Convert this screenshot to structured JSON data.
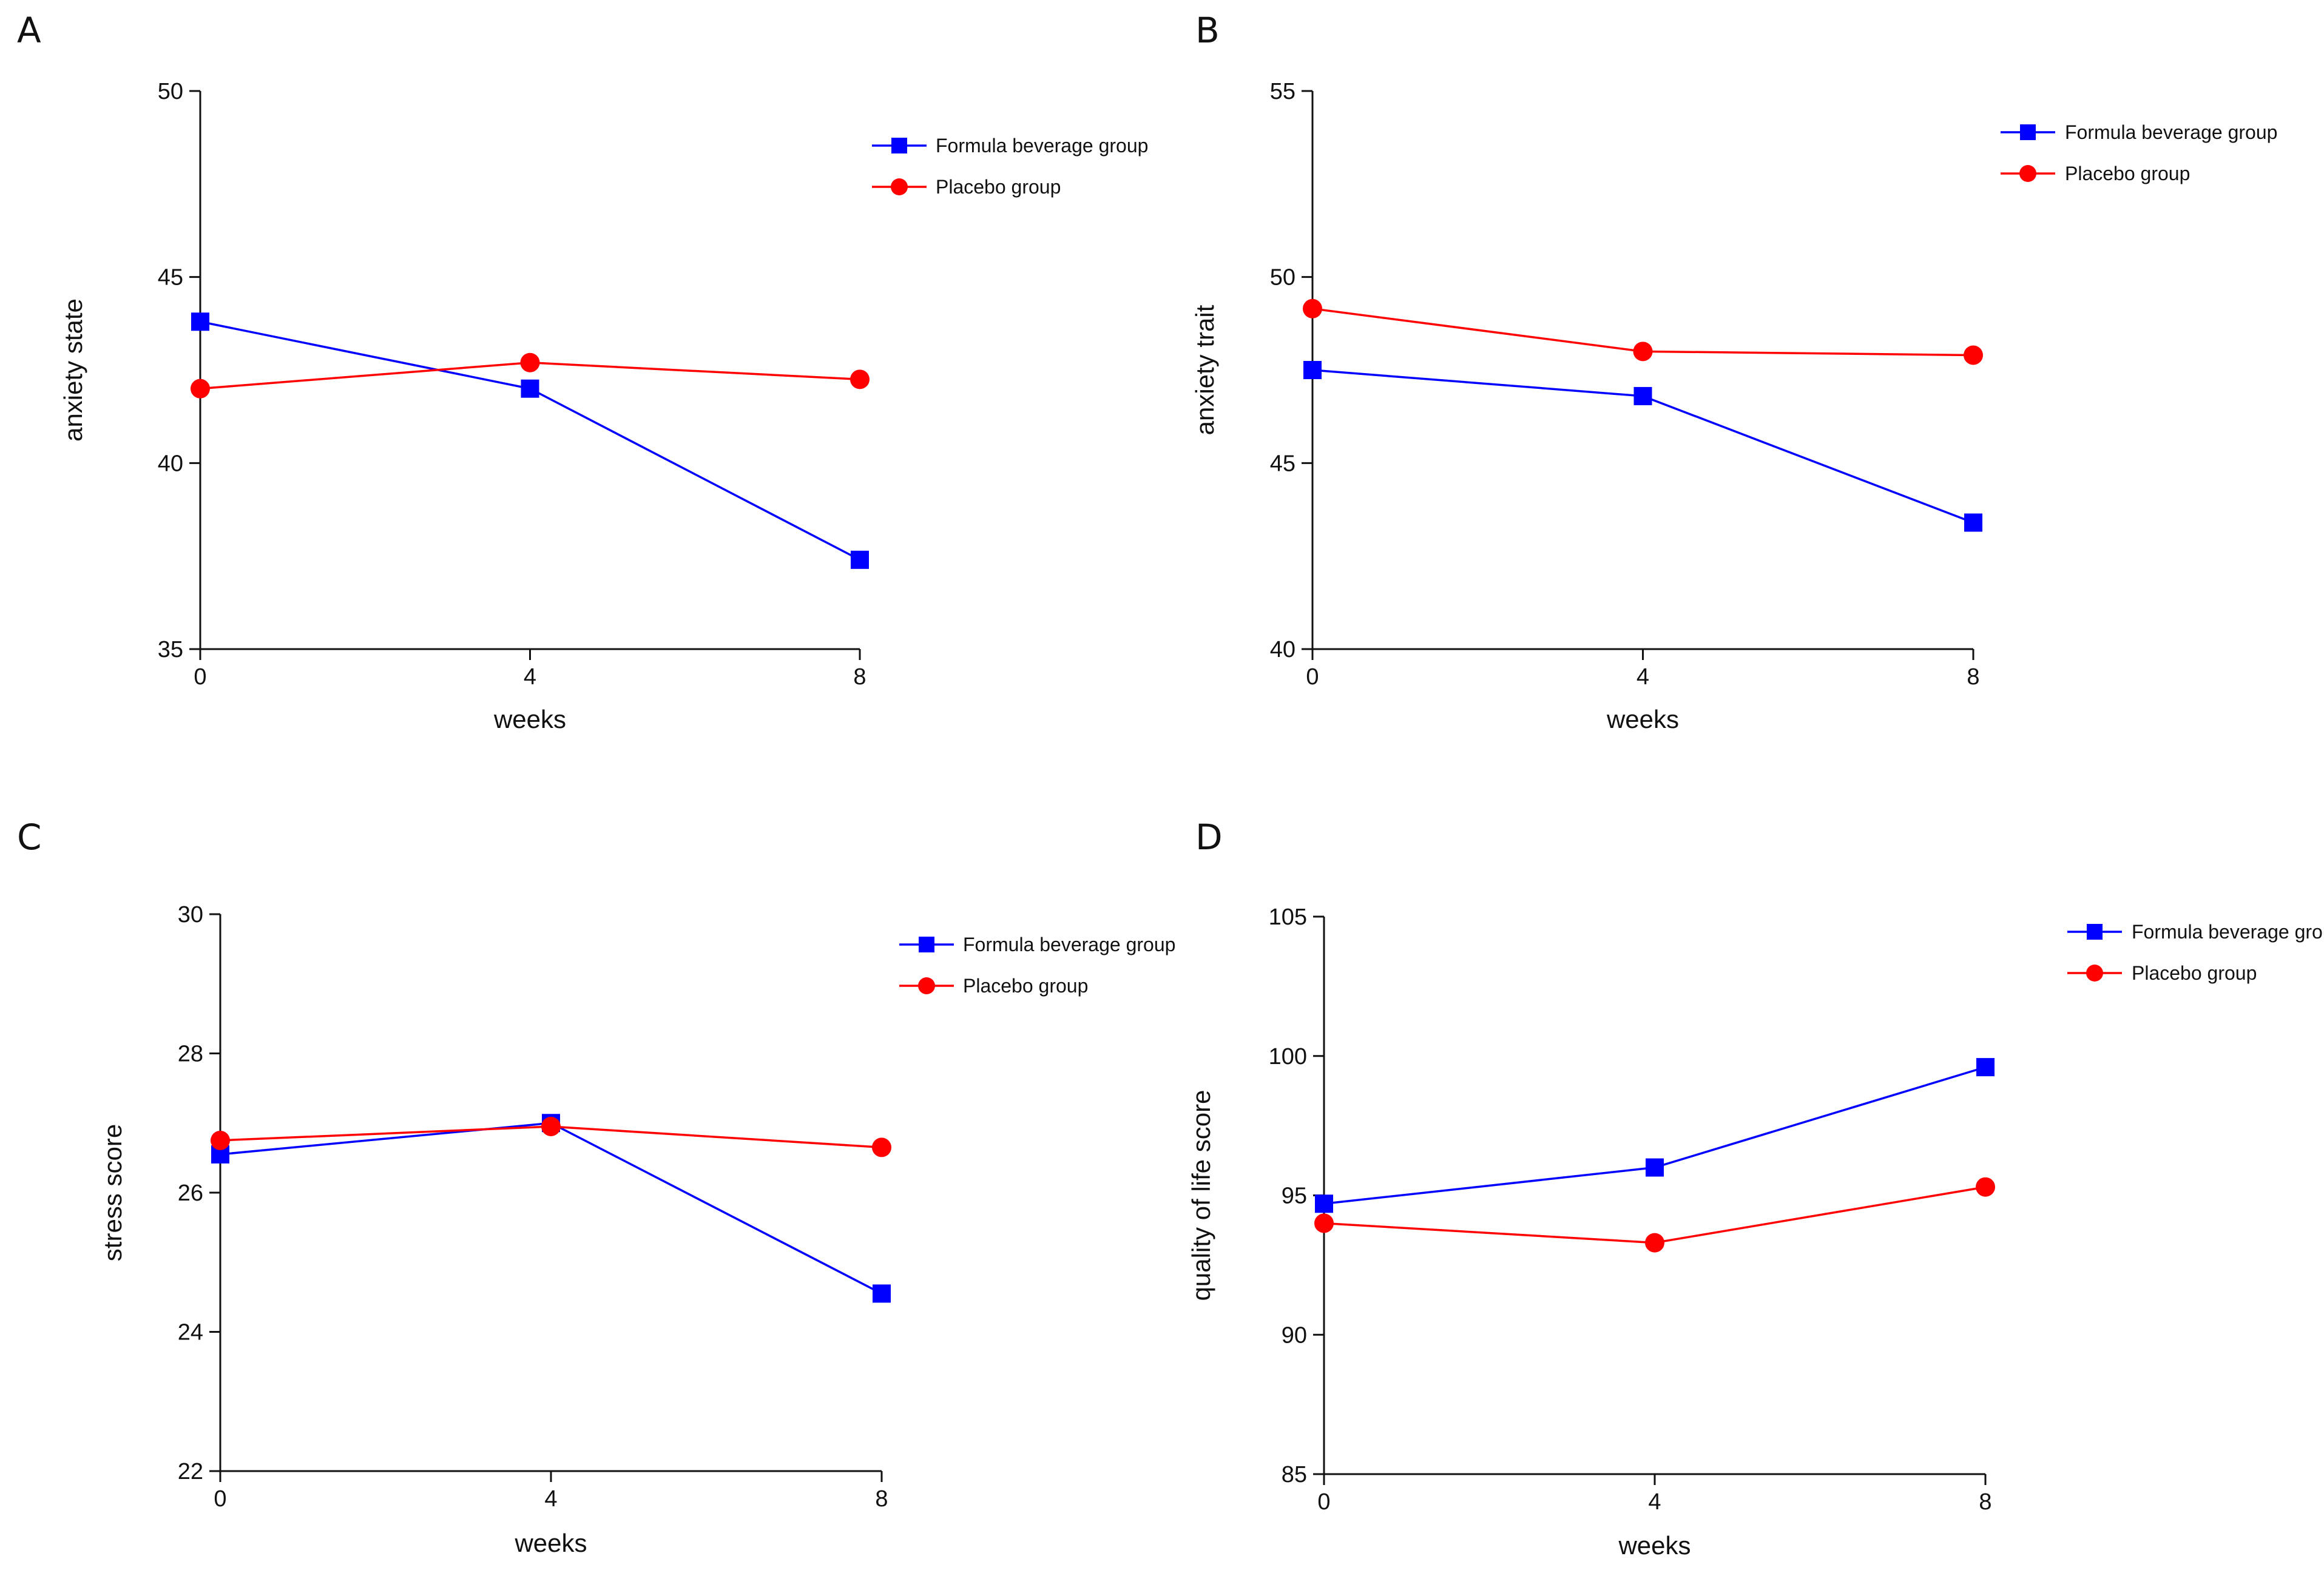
{
  "chart_data": [
    {
      "panel": "A",
      "type": "line",
      "x": [
        0,
        4,
        8
      ],
      "xlabel": "weeks",
      "ylabel": "anxiety state",
      "xlim": [
        0,
        8
      ],
      "ylim": [
        35,
        50
      ],
      "xticks": [
        "0",
        "4",
        "8"
      ],
      "yticks": [
        "35",
        "40",
        "45",
        "50"
      ],
      "grid": false,
      "legend_placement": "top-right",
      "series": [
        {
          "name": "Formula beverage group",
          "marker": "square",
          "color": "#0000ff",
          "values": [
            43.8,
            42.0,
            37.4
          ]
        },
        {
          "name": "Placebo group",
          "marker": "circle",
          "color": "#ff0000",
          "values": [
            42.0,
            42.7,
            42.25
          ]
        }
      ]
    },
    {
      "panel": "B",
      "type": "line",
      "x": [
        0,
        4,
        8
      ],
      "xlabel": "weeks",
      "ylabel": "anxiety trait",
      "xlim": [
        0,
        8
      ],
      "ylim": [
        40,
        55
      ],
      "xticks": [
        "0",
        "4",
        "8"
      ],
      "yticks": [
        "40",
        "45",
        "50",
        "55"
      ],
      "grid": false,
      "legend_placement": "top-right",
      "series": [
        {
          "name": "Formula beverage group",
          "marker": "square",
          "color": "#0000ff",
          "values": [
            47.5,
            46.8,
            43.4
          ]
        },
        {
          "name": "Placebo group",
          "marker": "circle",
          "color": "#ff0000",
          "values": [
            49.15,
            48.0,
            47.9
          ]
        }
      ]
    },
    {
      "panel": "C",
      "type": "line",
      "x": [
        0,
        4,
        8
      ],
      "xlabel": "weeks",
      "ylabel": "stress score",
      "xlim": [
        0,
        8
      ],
      "ylim": [
        22,
        30
      ],
      "xticks": [
        "0",
        "4",
        "8"
      ],
      "yticks": [
        "22",
        "24",
        "26",
        "28",
        "30"
      ],
      "grid": false,
      "legend_placement": "top-right",
      "series": [
        {
          "name": "Formula beverage group",
          "marker": "square",
          "color": "#0000ff",
          "values": [
            26.55,
            27.0,
            24.55
          ]
        },
        {
          "name": "Placebo group",
          "marker": "circle",
          "color": "#ff0000",
          "values": [
            26.75,
            26.95,
            26.65
          ]
        }
      ]
    },
    {
      "panel": "D",
      "type": "line",
      "x": [
        0,
        4,
        8
      ],
      "xlabel": "weeks",
      "ylabel": "quality of life score",
      "xlim": [
        0,
        8
      ],
      "ylim": [
        85,
        105
      ],
      "xticks": [
        "0",
        "4",
        "8"
      ],
      "yticks": [
        "85",
        "90",
        "95",
        "100",
        "105"
      ],
      "grid": false,
      "legend_placement": "top-right",
      "series": [
        {
          "name": "Formula beverage group",
          "marker": "square",
          "color": "#0000ff",
          "values": [
            94.7,
            96.0,
            99.6
          ]
        },
        {
          "name": "Placebo group",
          "marker": "circle",
          "color": "#ff0000",
          "values": [
            94.0,
            93.3,
            95.3
          ]
        }
      ]
    }
  ]
}
